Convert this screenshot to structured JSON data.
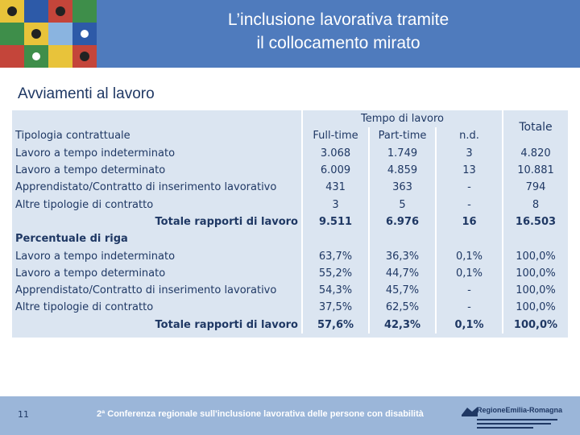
{
  "header": {
    "title_line1": "L’inclusione lavorativa tramite",
    "title_line2": "il collocamento mirato"
  },
  "section_title": "Avviamenti al lavoro",
  "table": {
    "group_header": "Tempo di lavoro",
    "total_header": "Totale",
    "row_label_header": "Tipologia contrattuale",
    "columns": [
      "Full-time",
      "Part-time",
      "n.d."
    ],
    "count_rows": [
      {
        "label": "Lavoro a tempo indeterminato",
        "values": [
          "3.068",
          "1.749",
          "3",
          "4.820"
        ]
      },
      {
        "label": "Lavoro a tempo determinato",
        "values": [
          "6.009",
          "4.859",
          "13",
          "10.881"
        ]
      },
      {
        "label": "Apprendistato/Contratto di inserimento lavorativo",
        "values": [
          "431",
          "363",
          "-",
          "794"
        ]
      },
      {
        "label": "Altre tipologie di contratto",
        "values": [
          "3",
          "5",
          "-",
          "8"
        ]
      }
    ],
    "count_total": {
      "label": "Totale rapporti di lavoro",
      "values": [
        "9.511",
        "6.976",
        "16",
        "16.503"
      ]
    },
    "percent_header": "Percentuale di riga",
    "percent_rows": [
      {
        "label": "Lavoro a tempo indeterminato",
        "values": [
          "63,7%",
          "36,3%",
          "0,1%",
          "100,0%"
        ]
      },
      {
        "label": "Lavoro a tempo determinato",
        "values": [
          "55,2%",
          "44,7%",
          "0,1%",
          "100,0%"
        ]
      },
      {
        "label": "Apprendistato/Contratto di inserimento lavorativo",
        "values": [
          "54,3%",
          "45,7%",
          "-",
          "100,0%"
        ]
      },
      {
        "label": "Altre tipologie di contratto",
        "values": [
          "37,5%",
          "62,5%",
          "-",
          "100,0%"
        ]
      }
    ],
    "percent_total": {
      "label": "Totale rapporti di lavoro",
      "values": [
        "57,6%",
        "42,3%",
        "0,1%",
        "100,0%"
      ]
    }
  },
  "footer": {
    "page_number": "11",
    "conference": "2ª Conferenza regionale sull'inclusione lavorativa delle persone con disabilità",
    "logo_text": "RegioneEmilia-Romagna"
  },
  "colors": {
    "header_bg": "#4f7bbd",
    "table_bg": "#dbe5f1",
    "text": "#1f3864",
    "footer_bg": "#9bb6d9"
  }
}
